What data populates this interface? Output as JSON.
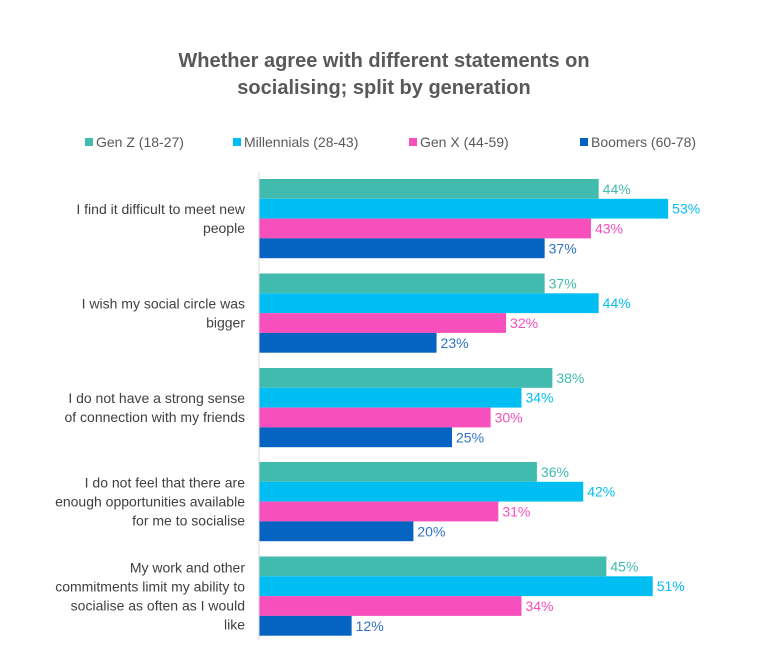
{
  "chart_data": {
    "type": "bar",
    "orientation": "horizontal",
    "title": "Whether agree with different statements on socialising; split by generation",
    "title_lines": [
      "Whether agree with different statements on",
      "socialising; split by generation"
    ],
    "xlabel": "",
    "ylabel": "",
    "xlim": [
      0,
      60
    ],
    "grid": false,
    "legend_position": "top",
    "categories": [
      [
        "I find it difficult to meet new",
        "people"
      ],
      [
        "I wish my social circle was",
        "bigger"
      ],
      [
        "I do not have a strong sense",
        "of connection with my friends"
      ],
      [
        "I do not feel that there are",
        "enough opportunities available",
        "for me to socialise"
      ],
      [
        "My work and other",
        "commitments limit my ability to",
        "socialise as often as I would",
        "like"
      ]
    ],
    "series": [
      {
        "name": "Gen Z (18-27)",
        "color": "#40BBAD",
        "label_color": "#40BBAD",
        "values": [
          44,
          37,
          38,
          36,
          45
        ],
        "labels": [
          "44%",
          "37%",
          "38%",
          "36%",
          "45%"
        ]
      },
      {
        "name": "Millennials (28-43)",
        "color": "#00BEF2",
        "label_color": "#00BEF2",
        "values": [
          53,
          44,
          34,
          42,
          51
        ],
        "labels": [
          "53%",
          "44%",
          "34%",
          "42%",
          "51%"
        ]
      },
      {
        "name": "Gen X (44-59)",
        "color": "#F74FBB",
        "label_color": "#F74FBB",
        "values": [
          43,
          32,
          30,
          31,
          34
        ],
        "labels": [
          "43%",
          "32%",
          "30%",
          "31%",
          "34%"
        ]
      },
      {
        "name": "Boomers (60-78)",
        "color": "#0563C1",
        "label_color": "#2F72C8",
        "values": [
          37,
          23,
          25,
          20,
          12
        ],
        "labels": [
          "37%",
          "23%",
          "25%",
          "20%",
          "12%"
        ]
      }
    ]
  }
}
